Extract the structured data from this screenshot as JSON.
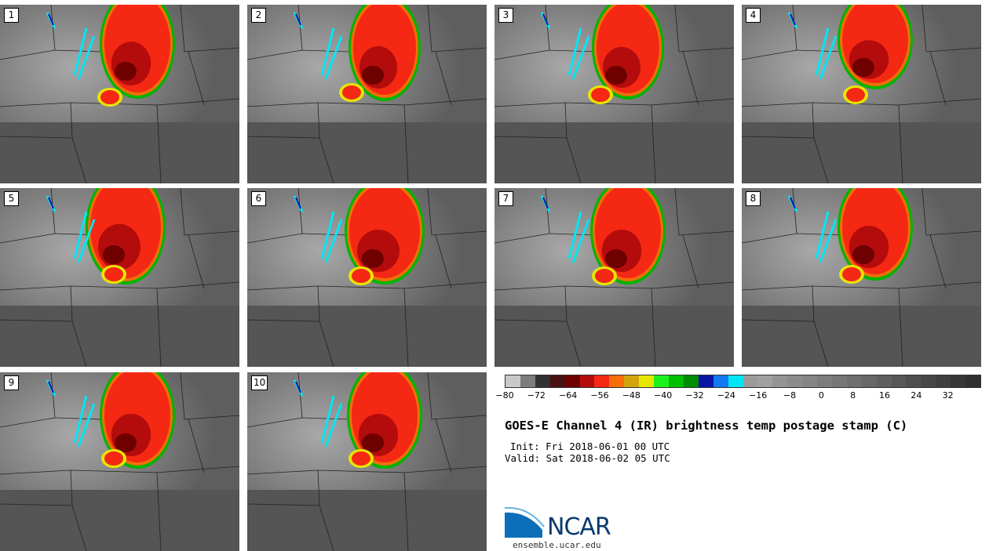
{
  "stamps": [
    {
      "label": "1"
    },
    {
      "label": "2"
    },
    {
      "label": "3"
    },
    {
      "label": "4"
    },
    {
      "label": "5"
    },
    {
      "label": "6"
    },
    {
      "label": "7"
    },
    {
      "label": "8"
    },
    {
      "label": "9"
    },
    {
      "label": "10"
    }
  ],
  "colorbar": {
    "colors": [
      "#c8c8c8",
      "#7d7d7d",
      "#323232",
      "#4a1111",
      "#6e0000",
      "#b40c0c",
      "#f52814",
      "#f56e0a",
      "#d2a50f",
      "#e6e600",
      "#1ef01e",
      "#00be00",
      "#008c00",
      "#0a14a5",
      "#1478f0",
      "#00e6f5",
      "#9b9b9b",
      "#a0a0a0",
      "#959595",
      "#8c8c8c",
      "#858585",
      "#7d7d7d",
      "#767676",
      "#6e6e6e",
      "#676767",
      "#5f5f5f",
      "#575757",
      "#4f4f4f",
      "#474747",
      "#3f3f3f",
      "#373737",
      "#2f2f2f"
    ],
    "min": -80,
    "max": 40,
    "ticks": [
      "−80",
      "−72",
      "−64",
      "−56",
      "−48",
      "−40",
      "−32",
      "−24",
      "−16",
      "−8",
      "0",
      "8",
      "16",
      "24",
      "32"
    ]
  },
  "title": "GOES-E Channel 4 (IR) brightness temp postage stamp (C)",
  "init": "Init: Fri 2018-06-01 00 UTC",
  "valid": "Valid: Sat 2018-06-02 05 UTC",
  "logo": {
    "text": "NCAR"
  },
  "url": "ensemble.ucar.edu"
}
